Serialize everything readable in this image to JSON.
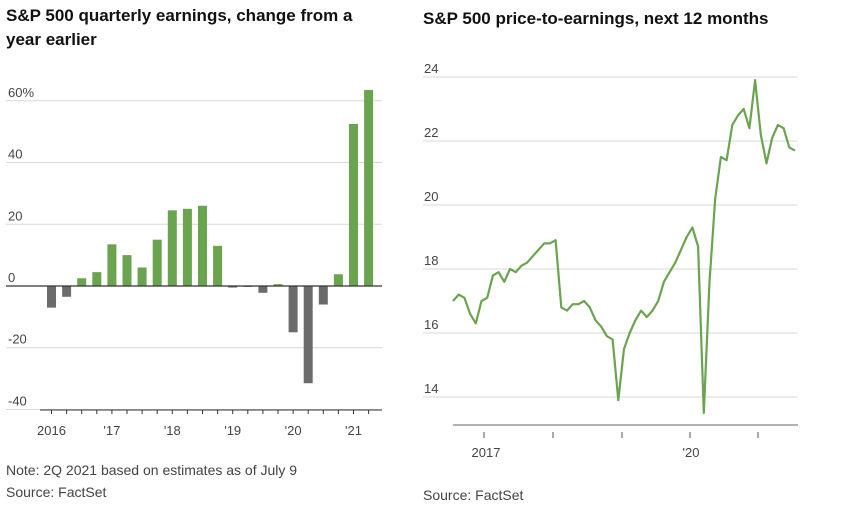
{
  "colors": {
    "positive": "#6aa44f",
    "negative": "#6b6b6b",
    "line": "#6aa44f",
    "grid": "#d8d8d8",
    "zero": "#333333"
  },
  "chart_data": [
    {
      "type": "bar",
      "title": "S&P 500 quarterly earnings, change from a year earlier",
      "note": "Note: 2Q 2021 based on estimates as of July 9",
      "source": "Source: FactSet",
      "ylim": [
        -40,
        65
      ],
      "ytick_values": [
        60,
        40,
        20,
        0,
        -20,
        -40
      ],
      "ytick_labels": [
        "60%",
        "40",
        "20",
        "0",
        "-20",
        "-40"
      ],
      "x_labels": [
        {
          "label": "2016",
          "quarter_index": 0
        },
        {
          "label": "'17",
          "quarter_index": 4
        },
        {
          "label": "'18",
          "quarter_index": 8
        },
        {
          "label": "'19",
          "quarter_index": 12
        },
        {
          "label": "'20",
          "quarter_index": 16
        },
        {
          "label": "'21",
          "quarter_index": 20
        }
      ],
      "categories": [
        "1Q16",
        "2Q16",
        "3Q16",
        "4Q16",
        "1Q17",
        "2Q17",
        "3Q17",
        "4Q17",
        "1Q18",
        "2Q18",
        "3Q18",
        "4Q18",
        "1Q19",
        "2Q19",
        "3Q19",
        "4Q19",
        "1Q20",
        "2Q20",
        "3Q20",
        "4Q20",
        "1Q21",
        "2Q21"
      ],
      "values": [
        -7,
        -3.5,
        2.5,
        4.5,
        13.5,
        10,
        6,
        15,
        24.5,
        25,
        26,
        13,
        -0.5,
        0,
        -2.2,
        0.6,
        -15,
        -31.5,
        -6,
        3.8,
        52.5,
        63.5
      ]
    },
    {
      "type": "line",
      "title": "S&P 500 price-to-earnings, next 12 months",
      "source": "Source: FactSet",
      "ylim": [
        13.2,
        24.2
      ],
      "ytick_values": [
        24,
        22,
        20,
        18,
        16,
        14
      ],
      "ytick_labels": [
        "24",
        "22",
        "20",
        "18",
        "16",
        "14"
      ],
      "x_labels": [
        "2017",
        "'20"
      ],
      "series": [
        {
          "x": [
            "2016-07",
            "2016-08",
            "2016-09",
            "2016-10",
            "2016-11",
            "2016-12",
            "2017-01",
            "2017-02",
            "2017-03",
            "2017-04",
            "2017-05",
            "2017-06",
            "2017-07",
            "2017-08",
            "2017-09",
            "2017-10",
            "2017-11",
            "2017-12",
            "2018-01",
            "2018-02",
            "2018-03",
            "2018-04",
            "2018-05",
            "2018-06",
            "2018-07",
            "2018-08",
            "2018-09",
            "2018-10",
            "2018-11",
            "2018-12",
            "2019-01",
            "2019-02",
            "2019-03",
            "2019-04",
            "2019-05",
            "2019-06",
            "2019-07",
            "2019-08",
            "2019-09",
            "2019-10",
            "2019-11",
            "2019-12",
            "2020-01",
            "2020-02",
            "2020-03",
            "2020-04",
            "2020-05",
            "2020-06",
            "2020-07",
            "2020-08",
            "2020-09",
            "2020-10",
            "2020-11",
            "2020-12",
            "2021-01",
            "2021-02",
            "2021-03",
            "2021-04",
            "2021-05",
            "2021-06",
            "2021-07"
          ],
          "values": [
            17.0,
            17.2,
            17.1,
            16.6,
            16.3,
            17.0,
            17.1,
            17.8,
            17.9,
            17.6,
            18.0,
            17.9,
            18.1,
            18.2,
            18.4,
            18.6,
            18.8,
            18.8,
            18.9,
            16.8,
            16.7,
            16.9,
            16.9,
            17.0,
            16.8,
            16.4,
            16.2,
            15.9,
            15.8,
            13.9,
            15.5,
            16.0,
            16.4,
            16.7,
            16.5,
            16.7,
            17.0,
            17.6,
            17.9,
            18.2,
            18.6,
            19.0,
            19.3,
            18.7,
            13.5,
            17.6,
            20.2,
            21.5,
            21.4,
            22.5,
            22.8,
            23.0,
            22.4,
            23.9,
            22.2,
            21.3,
            22.1,
            22.5,
            22.4,
            21.8,
            21.7
          ]
        }
      ]
    }
  ]
}
